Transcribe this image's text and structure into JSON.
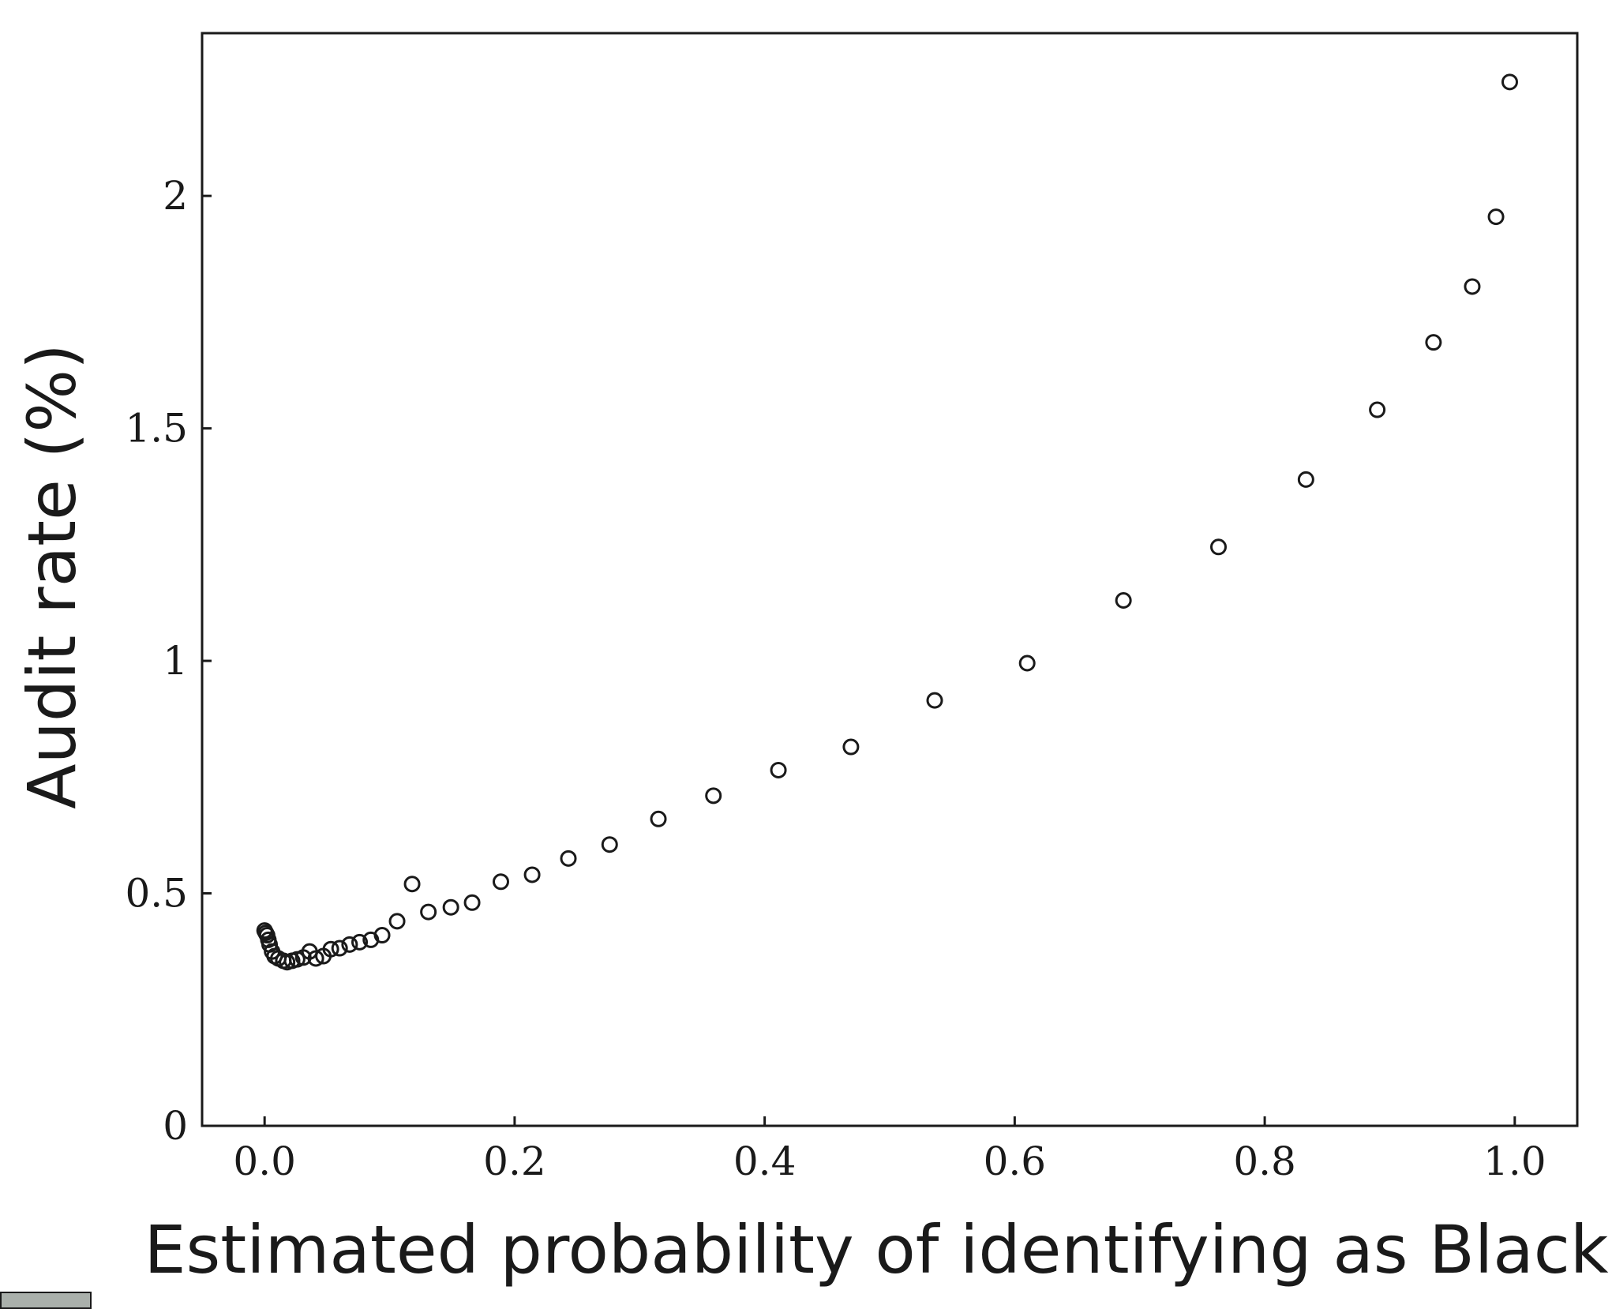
{
  "chart_data": {
    "type": "scatter",
    "title": "",
    "xlabel": "Estimated probability of identifying as Black",
    "ylabel": "Audit rate (%)",
    "xlim": [
      -0.05,
      1.05
    ],
    "ylim": [
      0,
      2.35
    ],
    "xticks": [
      0.0,
      0.2,
      0.4,
      0.6,
      0.8,
      1.0
    ],
    "xtick_labels": [
      "0.0",
      "0.2",
      "0.4",
      "0.6",
      "0.8",
      "1.0"
    ],
    "yticks": [
      0,
      0.5,
      1,
      1.5,
      2
    ],
    "ytick_labels": [
      "0",
      "0.5",
      "1",
      "1.5",
      "2"
    ],
    "grid": false,
    "marker": "open-circle",
    "x": [
      0.0,
      0.001,
      0.002,
      0.003,
      0.004,
      0.006,
      0.008,
      0.011,
      0.015,
      0.018,
      0.022,
      0.026,
      0.031,
      0.036,
      0.041,
      0.047,
      0.053,
      0.06,
      0.068,
      0.076,
      0.085,
      0.094,
      0.106,
      0.118,
      0.131,
      0.149,
      0.166,
      0.189,
      0.214,
      0.243,
      0.276,
      0.315,
      0.359,
      0.411,
      0.469,
      0.536,
      0.61,
      0.687,
      0.763,
      0.833,
      0.89,
      0.935,
      0.966,
      0.985,
      0.996
    ],
    "y": [
      0.42,
      0.415,
      0.41,
      0.4,
      0.39,
      0.375,
      0.365,
      0.36,
      0.355,
      0.352,
      0.355,
      0.358,
      0.362,
      0.375,
      0.36,
      0.365,
      0.38,
      0.382,
      0.39,
      0.395,
      0.4,
      0.41,
      0.44,
      0.52,
      0.46,
      0.47,
      0.48,
      0.525,
      0.54,
      0.575,
      0.605,
      0.66,
      0.71,
      0.765,
      0.815,
      0.915,
      0.995,
      1.13,
      1.245,
      1.39,
      1.54,
      1.685,
      1.805,
      1.955,
      2.245
    ]
  },
  "badge": "cc-license-badge"
}
